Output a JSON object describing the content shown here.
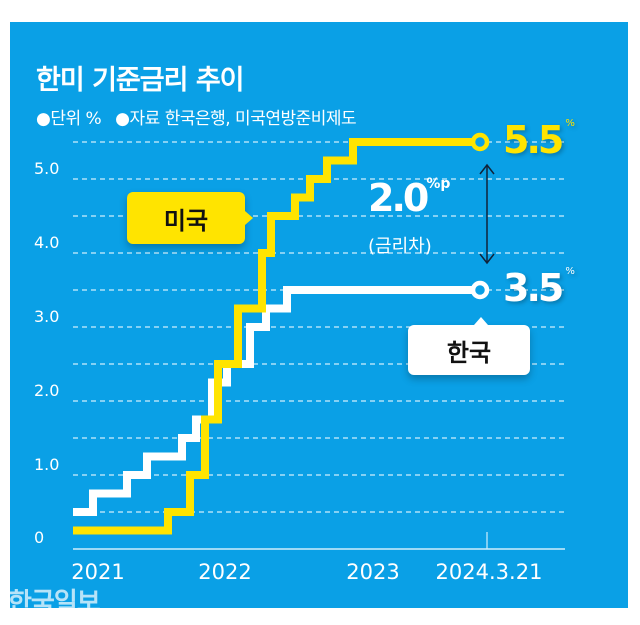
{
  "title": "한미 기준금리 추이",
  "subtitle": {
    "unit": "●단위 %",
    "source": "●자료  한국은행, 미국연방준비제도"
  },
  "colors": {
    "background": "#0aa0e6",
    "us": "#ffe400",
    "korea": "#ffffff"
  },
  "watermark": "한국일보",
  "chart_data": {
    "type": "line",
    "step": true,
    "title": "한미 기준금리 추이",
    "ylabel": "%",
    "ylim": [
      0,
      5.5
    ],
    "y_ticks": [
      "0",
      "1.0",
      "2.0",
      "3.0",
      "4.0",
      "5.0"
    ],
    "x_ticks": [
      "2021",
      "2022",
      "2023",
      "2024.3.21"
    ],
    "grid": true,
    "series": [
      {
        "name": "미국",
        "color": "#ffe400",
        "x": [
          "2021-01-01",
          "2022-03-16",
          "2022-05-04",
          "2022-06-15",
          "2022-07-27",
          "2022-09-21",
          "2022-11-02",
          "2022-12-14",
          "2023-02-01",
          "2023-03-22",
          "2023-05-03",
          "2023-07-26",
          "2024-03-21"
        ],
        "y": [
          0.25,
          0.5,
          1.0,
          1.75,
          2.5,
          3.25,
          4.0,
          4.5,
          4.75,
          5.0,
          5.25,
          5.5,
          5.5
        ],
        "end_label": "5.5",
        "end_unit": "%"
      },
      {
        "name": "한국",
        "color": "#ffffff",
        "x": [
          "2021-01-01",
          "2021-08-26",
          "2021-11-25",
          "2022-01-14",
          "2022-04-14",
          "2022-05-26",
          "2022-07-13",
          "2022-08-25",
          "2022-10-12",
          "2022-11-24",
          "2023-01-13",
          "2024-03-21"
        ],
        "y": [
          0.5,
          0.75,
          1.0,
          1.25,
          1.5,
          1.75,
          2.25,
          2.5,
          3.0,
          3.25,
          3.5,
          3.5
        ],
        "end_label": "3.5",
        "end_unit": "%"
      }
    ],
    "annotations": {
      "gap_value": "2.0",
      "gap_unit": "%p",
      "gap_label": "(금리차)"
    }
  }
}
